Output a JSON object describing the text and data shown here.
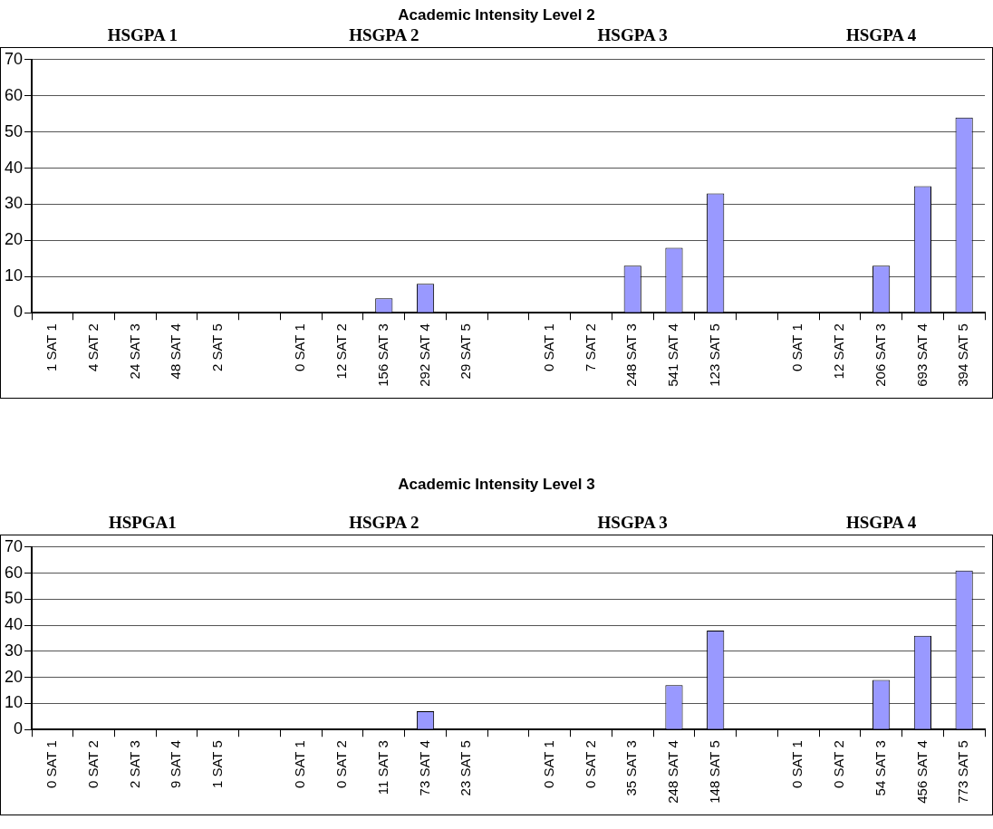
{
  "chart_data": [
    {
      "type": "bar",
      "title": "Academic Intensity Level 2",
      "annotations": [
        "HSGPA 1",
        "HSGPA 2",
        "HSGPA 3",
        "HSGPA 4"
      ],
      "categories": [
        "1 SAT 1",
        "4 SAT 2",
        "24 SAT 3",
        "48 SAT 4",
        "2 SAT 5",
        null,
        "0 SAT 1",
        "12 SAT 2",
        "156 SAT 3",
        "292 SAT 4",
        "29 SAT 5",
        null,
        "0 SAT 1",
        "7 SAT 2",
        "248 SAT 3",
        "541 SAT 4",
        "123 SAT 5",
        null,
        "0 SAT 1",
        "12 SAT 2",
        "206 SAT 3",
        "693 SAT 4",
        "394 SAT 5"
      ],
      "values": [
        0,
        0,
        0,
        0,
        0,
        null,
        0,
        0,
        4,
        8,
        0,
        null,
        0,
        0,
        13,
        18,
        33,
        null,
        0,
        0,
        13,
        35,
        54
      ],
      "color": "#9999ff",
      "ylim": [
        0,
        70
      ],
      "yticks": [
        0,
        10,
        20,
        30,
        40,
        50,
        60,
        70
      ],
      "grid": "y",
      "legend": false
    },
    {
      "type": "bar",
      "title": "Academic Intensity Level 3",
      "annotations": [
        "HSPGA1",
        "HSGPA 2",
        "HSGPA 3",
        "HSGPA 4"
      ],
      "categories": [
        "0 SAT 1",
        "0 SAT 2",
        "2 SAT 3",
        "9 SAT 4",
        "1 SAT 5",
        null,
        "0 SAT 1",
        "0 SAT 2",
        "11 SAT 3",
        "73 SAT 4",
        "23 SAT 5",
        null,
        "0 SAT 1",
        "0 SAT 2",
        "35 SAT 3",
        "248 SAT 4",
        "148 SAT 5",
        null,
        "0 SAT 1",
        "0 SAT 2",
        "54 SAT 3",
        "456 SAT 4",
        "773 SAT 5"
      ],
      "values": [
        0,
        0,
        0,
        0,
        0,
        null,
        0,
        0,
        0,
        7,
        0,
        null,
        0,
        0,
        0,
        17,
        38,
        null,
        0,
        0,
        19,
        36,
        61
      ],
      "color": "#9999ff",
      "ylim": [
        0,
        70
      ],
      "yticks": [
        0,
        10,
        20,
        30,
        40,
        50,
        60,
        70
      ],
      "grid": "y",
      "legend": false
    }
  ]
}
